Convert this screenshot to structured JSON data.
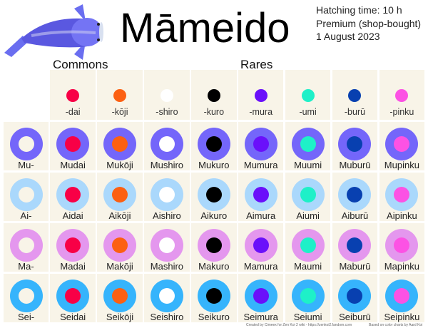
{
  "header": {
    "title": "Māmeido",
    "info": [
      "Hatching time: 10 h",
      "Premium (shop-bought)",
      "1 August 2023"
    ]
  },
  "sections": {
    "commons": "Commons",
    "rares": "Rares"
  },
  "background_color": "#f8f4e8",
  "columns": [
    {
      "suffix": "-dai",
      "color": "#f80046"
    },
    {
      "suffix": "-kōji",
      "color": "#fc6012"
    },
    {
      "suffix": "-shiro",
      "color": "#ffffff"
    },
    {
      "suffix": "-kuro",
      "color": "#000000"
    },
    {
      "suffix": "-mura",
      "color": "#6a10fa"
    },
    {
      "suffix": "-umi",
      "color": "#1ef0c8"
    },
    {
      "suffix": "-burū",
      "color": "#0840b0"
    },
    {
      "suffix": "-pinku",
      "color": "#fc52e4"
    }
  ],
  "rows": [
    {
      "prefix": "Mu-",
      "color": "#7466fa",
      "names": [
        "Mudai",
        "Mukōji",
        "Mushiro",
        "Mukuro",
        "Mumura",
        "Muumi",
        "Muburū",
        "Mupinku"
      ]
    },
    {
      "prefix": "Ai-",
      "color": "#aad8fc",
      "names": [
        "Aidai",
        "Aikōji",
        "Aishiro",
        "Aikuro",
        "Aimura",
        "Aiumi",
        "Aiburū",
        "Aipinku"
      ]
    },
    {
      "prefix": "Ma-",
      "color": "#e497ee",
      "names": [
        "Madai",
        "Makōji",
        "Mashiro",
        "Makuro",
        "Mamura",
        "Maumi",
        "Maburū",
        "Mapinku"
      ]
    },
    {
      "prefix": "Sei-",
      "color": "#36b4fc",
      "names": [
        "Seidai",
        "Seikōji",
        "Seishiro",
        "Seikuro",
        "Seimura",
        "Seiumi",
        "Seiburū",
        "Seipinku"
      ]
    }
  ],
  "credits": {
    "left": "Created by Cimeex for Zen Koi 2 wiki - https://zenkoi2.fandom.com",
    "right": "Based on color charts by Aard Koi"
  }
}
